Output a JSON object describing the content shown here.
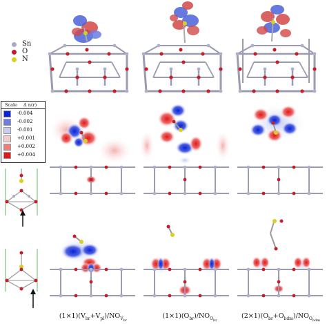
{
  "legend_atoms": [
    {
      "label": "Sn",
      "color": "#a8a8c8"
    },
    {
      "label": "O",
      "color": "#c0202a"
    },
    {
      "label": "N",
      "color": "#d8d020"
    }
  ],
  "scale_legend": {
    "title_left": "Scale",
    "title_right": "Δ n(r)",
    "entries": [
      {
        "value": "-0.004",
        "color": "#0a22d8"
      },
      {
        "value": "-0.002",
        "color": "#6c7ee6"
      },
      {
        "value": "-0.001",
        "color": "#c8cdf2"
      },
      {
        "value": "+0.001",
        "color": "#f4cccc"
      },
      {
        "value": "+0.002",
        "color": "#ec7e7e"
      },
      {
        "value": "+0.004",
        "color": "#e01818"
      }
    ]
  },
  "captions": [
    {
      "main": "(1×1)(V",
      "sub1": "br",
      "mid": "+V",
      "sub2": "pl",
      "end": ")/NO",
      "sub3": "V",
      "sub4": "br"
    },
    {
      "main": "(1×1)(O",
      "sub1": "br",
      "mid": "",
      "sub2": "",
      "end": ")/NO",
      "sub3": "O",
      "sub4": "br"
    },
    {
      "main": "(2×1)(O",
      "sub1": "br",
      "mid": "+O",
      "sub2": "bdm",
      "end": ")/NO",
      "sub3": "O",
      "sub4": "bdm"
    }
  ]
}
